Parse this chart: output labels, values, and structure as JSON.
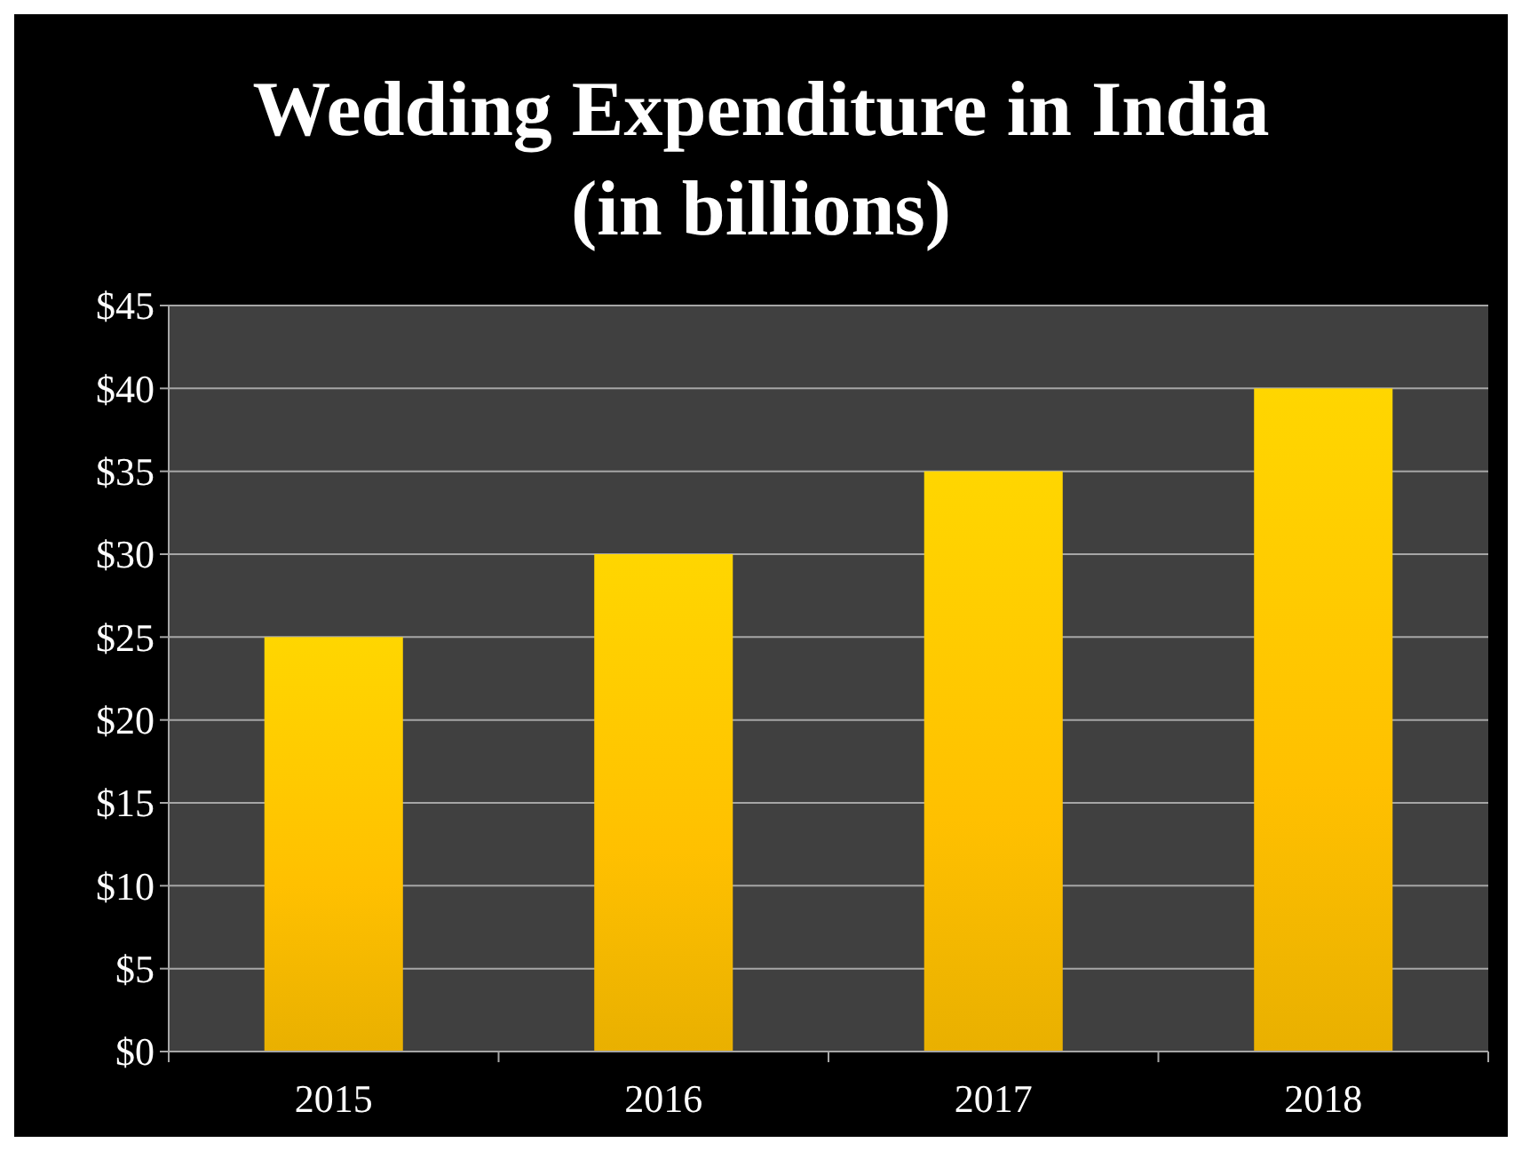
{
  "chart_data": {
    "type": "bar",
    "title": "Wedding Expenditure in India\n(in billions)",
    "categories": [
      "2015",
      "2016",
      "2017",
      "2018"
    ],
    "values": [
      25,
      30,
      35,
      40
    ],
    "color": "#ffc000",
    "ylim": [
      0,
      45
    ],
    "yticks": [
      {
        "value": 0,
        "label": "$0"
      },
      {
        "value": 5,
        "label": "$5"
      },
      {
        "value": 10,
        "label": "$10"
      },
      {
        "value": 15,
        "label": "$15"
      },
      {
        "value": 20,
        "label": "$20"
      },
      {
        "value": 25,
        "label": "$25"
      },
      {
        "value": 30,
        "label": "$30"
      },
      {
        "value": 35,
        "label": "$35"
      },
      {
        "value": 40,
        "label": "$40"
      },
      {
        "value": 45,
        "label": "$45"
      }
    ],
    "grid": "y"
  }
}
